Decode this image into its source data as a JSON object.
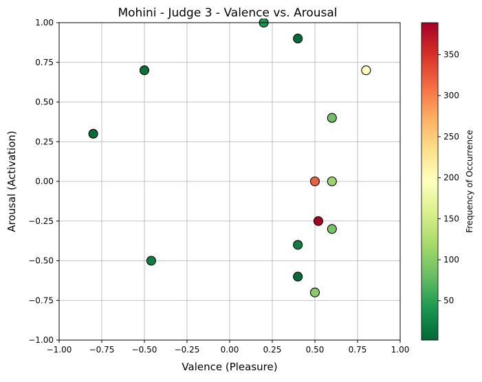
{
  "chart_data": {
    "type": "scatter",
    "title": "Mohini - Judge 3 - Valence vs. Arousal",
    "xlabel": "Valence (Pleasure)",
    "ylabel": "Arousal (Activation)",
    "xlim": [
      -1.0,
      1.0
    ],
    "ylim": [
      -1.0,
      1.0
    ],
    "xticks": [
      "−1.00",
      "−0.75",
      "−0.50",
      "−0.25",
      "0.00",
      "0.25",
      "0.50",
      "0.75",
      "1.00"
    ],
    "yticks": [
      "−1.00",
      "−0.75",
      "−0.50",
      "−0.25",
      "0.00",
      "0.25",
      "0.50",
      "0.75",
      "1.00"
    ],
    "xtick_values": [
      -1.0,
      -0.75,
      -0.5,
      -0.25,
      0.0,
      0.25,
      0.5,
      0.75,
      1.0
    ],
    "ytick_values": [
      -1.0,
      -0.75,
      -0.5,
      -0.25,
      0.0,
      0.25,
      0.5,
      0.75,
      1.0
    ],
    "grid": true,
    "colormap": "RdYlGn_r",
    "colorbar": {
      "label": "Frequency of Occurrence",
      "min": 2,
      "max": 389,
      "ticks": [
        50,
        100,
        150,
        200,
        250,
        300,
        350
      ]
    },
    "points": [
      {
        "x": 0.2,
        "y": 1.0,
        "frequency": 40
      },
      {
        "x": 0.4,
        "y": 0.9,
        "frequency": 5
      },
      {
        "x": -0.5,
        "y": 0.7,
        "frequency": 10
      },
      {
        "x": 0.8,
        "y": 0.7,
        "frequency": 195
      },
      {
        "x": 0.6,
        "y": 0.4,
        "frequency": 85
      },
      {
        "x": -0.8,
        "y": 0.3,
        "frequency": 5
      },
      {
        "x": 0.5,
        "y": 0.0,
        "frequency": 320
      },
      {
        "x": 0.6,
        "y": 0.0,
        "frequency": 110
      },
      {
        "x": 0.52,
        "y": -0.25,
        "frequency": 389
      },
      {
        "x": 0.6,
        "y": -0.3,
        "frequency": 90
      },
      {
        "x": 0.4,
        "y": -0.4,
        "frequency": 20
      },
      {
        "x": -0.46,
        "y": -0.5,
        "frequency": 20
      },
      {
        "x": 0.4,
        "y": -0.6,
        "frequency": 5
      },
      {
        "x": 0.5,
        "y": -0.7,
        "frequency": 100
      }
    ]
  }
}
